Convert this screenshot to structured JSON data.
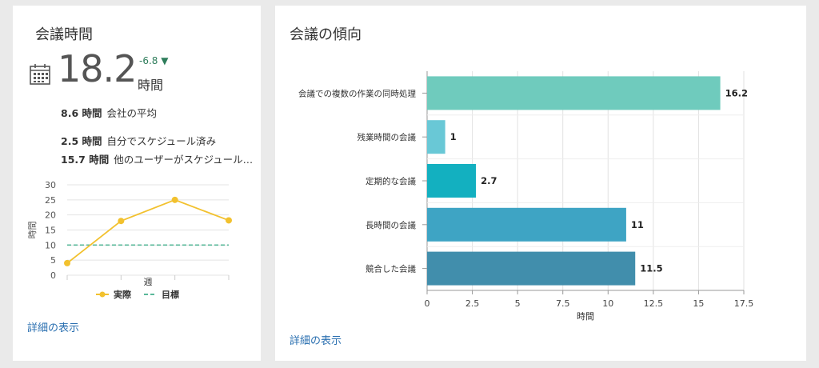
{
  "left_card": {
    "title": "会議時間",
    "value": "18.2",
    "unit": "時間",
    "delta": "-6.8",
    "stats": [
      {
        "value": "8.6 時間",
        "label": "会社の平均"
      },
      {
        "value": "2.5 時間",
        "label": "自分でスケジュール済み"
      },
      {
        "value": "15.7 時間",
        "label": "他のユーザーがスケジュール…"
      }
    ],
    "link": "詳細の表示"
  },
  "right_card": {
    "title": "会議の傾向",
    "link": "詳細の表示"
  },
  "chart_data": [
    {
      "type": "line",
      "xlabel": "週",
      "ylabel": "時間",
      "ylim": [
        0,
        30
      ],
      "yticks": [
        "0",
        "5",
        "10",
        "15",
        "20",
        "25",
        "30"
      ],
      "x": [
        1,
        2,
        3,
        4
      ],
      "grid": true,
      "legend_position": "bottom",
      "series": [
        {
          "name": "実際",
          "values": [
            4,
            18,
            25,
            18.2
          ],
          "color": "#f2c12e",
          "style": "solid-with-markers"
        },
        {
          "name": "目標",
          "values": [
            10,
            10,
            10,
            10
          ],
          "color": "#5ab89a",
          "style": "dashed"
        }
      ]
    },
    {
      "type": "bar",
      "orientation": "horizontal",
      "xlabel": "時間",
      "xlim": [
        0,
        17.5
      ],
      "xticks": [
        "0",
        "2.5",
        "5",
        "7.5",
        "10",
        "12.5",
        "15",
        "17.5"
      ],
      "grid": true,
      "categories": [
        "会議での複数の作業の同時処理",
        "残業時間の会議",
        "定期的な会議",
        "長時間の会議",
        "競合した会議"
      ],
      "values": [
        16.2,
        1,
        2.7,
        11,
        11.5
      ],
      "value_labels": [
        "16.2",
        "1",
        "2.7",
        "11",
        "11.5"
      ],
      "colors": [
        "#6fcbbd",
        "#69c8d6",
        "#13b0c0",
        "#3ea4c4",
        "#418eac"
      ]
    }
  ]
}
